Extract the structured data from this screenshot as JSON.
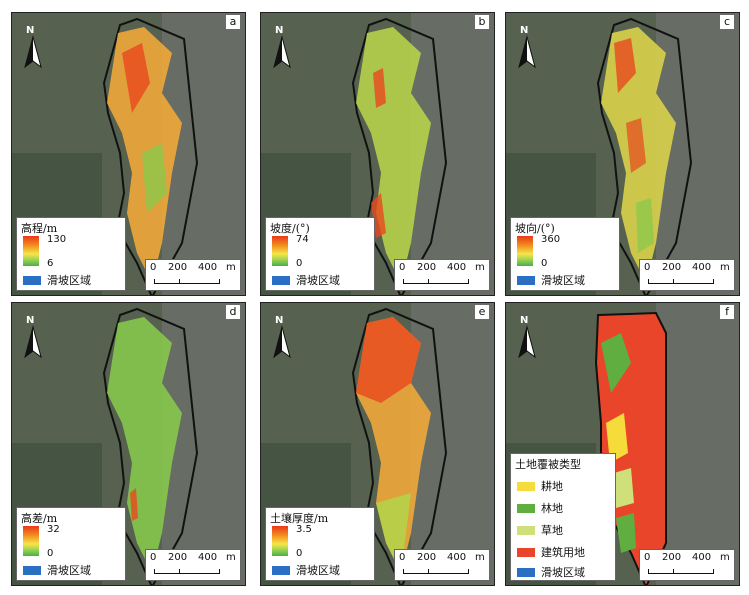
{
  "panels": [
    {
      "letter": "a",
      "legend_type": "ramp",
      "title": "高程/m",
      "max": "130",
      "min": "6",
      "landslide_label": "滑坡区域",
      "color": "#f1a33a"
    },
    {
      "letter": "b",
      "legend_type": "ramp",
      "title": "坡度/(°)",
      "max": "74",
      "min": "0",
      "landslide_label": "滑坡区域",
      "color": "#b8d14a"
    },
    {
      "letter": "c",
      "legend_type": "ramp",
      "title": "坡向/(°)",
      "max": "360",
      "min": "0",
      "landslide_label": "滑坡区域",
      "color": "#d6cf48"
    },
    {
      "letter": "d",
      "legend_type": "ramp",
      "title": "高差/m",
      "max": "32",
      "min": "0",
      "landslide_label": "滑坡区域",
      "color": "#7fc64b"
    },
    {
      "letter": "e",
      "legend_type": "ramp",
      "title": "土壤厚度/m",
      "max": "3.5",
      "min": "0",
      "landslide_label": "滑坡区域",
      "color": "#e69b35"
    },
    {
      "letter": "f",
      "legend_type": "categorical",
      "title": "土地覆被类型",
      "color": "#e8452a",
      "classes": [
        {
          "label": "耕地",
          "color": "#f5dc3a"
        },
        {
          "label": "林地",
          "color": "#5fae3f"
        },
        {
          "label": "草地",
          "color": "#cfe07a"
        },
        {
          "label": "建筑用地",
          "color": "#e8452a"
        },
        {
          "label": "滑坡区域",
          "color": "#2a6fc4"
        }
      ]
    }
  ],
  "north_label": "N",
  "scale": {
    "ticks": [
      "0",
      "200",
      "400"
    ],
    "unit": "m"
  },
  "colors": {
    "ramp_high": "#e8381b",
    "ramp_mid": "#f5e64a",
    "ramp_low": "#46b04e",
    "landslide": "#2a6fc4",
    "imagery": "#4d5a4a",
    "boundary": "#111111"
  }
}
